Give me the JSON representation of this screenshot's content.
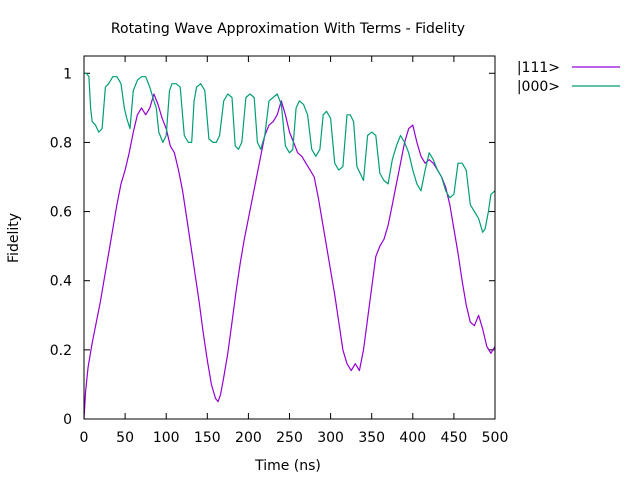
{
  "chart_data": {
    "type": "line",
    "title": "Rotating Wave Approximation With Terms - Fidelity",
    "xlabel": "Time (ns)",
    "ylabel": "Fidelity",
    "xlim": [
      0,
      500
    ],
    "ylim": [
      0,
      1.05
    ],
    "xticks": [
      0,
      50,
      100,
      150,
      200,
      250,
      300,
      350,
      400,
      450,
      500
    ],
    "yticks": [
      0,
      0.2,
      0.4,
      0.6,
      0.8,
      1
    ],
    "ytick_labels": [
      "0",
      "0.2",
      "0.4",
      "0.6",
      "0.8",
      "1"
    ],
    "grid": false,
    "legend_position": "top-right outside",
    "series": [
      {
        "name": "|111>",
        "color": "#9400d3",
        "x": [
          0,
          2,
          5,
          10,
          15,
          20,
          25,
          30,
          35,
          40,
          45,
          50,
          55,
          60,
          65,
          70,
          75,
          80,
          85,
          90,
          95,
          100,
          105,
          110,
          115,
          120,
          125,
          130,
          135,
          140,
          145,
          150,
          155,
          160,
          163,
          166,
          170,
          175,
          180,
          185,
          190,
          195,
          200,
          205,
          210,
          215,
          220,
          225,
          230,
          235,
          240,
          245,
          250,
          255,
          260,
          265,
          270,
          275,
          280,
          285,
          290,
          295,
          300,
          305,
          310,
          315,
          320,
          325,
          330,
          335,
          340,
          345,
          350,
          355,
          360,
          365,
          370,
          375,
          380,
          385,
          390,
          395,
          400,
          405,
          410,
          415,
          420,
          425,
          430,
          435,
          440,
          445,
          450,
          455,
          460,
          465,
          470,
          475,
          480,
          485,
          490,
          495,
          500
        ],
        "y": [
          0.0,
          0.08,
          0.15,
          0.22,
          0.28,
          0.34,
          0.41,
          0.48,
          0.55,
          0.62,
          0.68,
          0.72,
          0.77,
          0.83,
          0.88,
          0.9,
          0.88,
          0.9,
          0.94,
          0.91,
          0.87,
          0.84,
          0.79,
          0.77,
          0.72,
          0.66,
          0.58,
          0.5,
          0.42,
          0.34,
          0.25,
          0.17,
          0.1,
          0.06,
          0.05,
          0.07,
          0.12,
          0.19,
          0.28,
          0.37,
          0.45,
          0.52,
          0.58,
          0.64,
          0.7,
          0.76,
          0.82,
          0.85,
          0.86,
          0.88,
          0.92,
          0.88,
          0.83,
          0.8,
          0.77,
          0.76,
          0.74,
          0.72,
          0.7,
          0.64,
          0.57,
          0.5,
          0.43,
          0.36,
          0.28,
          0.2,
          0.16,
          0.14,
          0.16,
          0.14,
          0.2,
          0.29,
          0.38,
          0.47,
          0.5,
          0.52,
          0.56,
          0.62,
          0.68,
          0.74,
          0.8,
          0.84,
          0.85,
          0.8,
          0.76,
          0.74,
          0.75,
          0.74,
          0.72,
          0.7,
          0.67,
          0.62,
          0.55,
          0.48,
          0.4,
          0.33,
          0.28,
          0.27,
          0.3,
          0.26,
          0.21,
          0.19,
          0.21
        ]
      },
      {
        "name": "|000>",
        "color": "#009e73",
        "x": [
          0,
          3,
          6,
          8,
          10,
          14,
          18,
          22,
          26,
          30,
          35,
          40,
          45,
          49,
          52,
          56,
          60,
          65,
          70,
          75,
          80,
          85,
          88,
          91,
          96,
          100,
          104,
          107,
          112,
          117,
          122,
          127,
          131,
          134,
          137,
          142,
          147,
          152,
          157,
          161,
          165,
          170,
          175,
          180,
          184,
          188,
          192,
          197,
          202,
          207,
          211,
          215,
          220,
          225,
          230,
          235,
          240,
          245,
          250,
          254,
          258,
          262,
          267,
          272,
          277,
          282,
          287,
          291,
          295,
          300,
          305,
          310,
          315,
          320,
          324,
          328,
          332,
          336,
          340,
          345,
          350,
          355,
          360,
          365,
          370,
          375,
          380,
          385,
          390,
          395,
          400,
          405,
          410,
          415,
          420,
          425,
          430,
          435,
          440,
          445,
          450,
          455,
          460,
          465,
          470,
          475,
          480,
          485,
          488,
          492,
          495,
          500
        ],
        "y": [
          1.0,
          1.0,
          0.99,
          0.9,
          0.86,
          0.85,
          0.83,
          0.84,
          0.96,
          0.97,
          0.99,
          0.99,
          0.97,
          0.9,
          0.87,
          0.84,
          0.95,
          0.98,
          0.99,
          0.99,
          0.96,
          0.92,
          0.9,
          0.83,
          0.8,
          0.82,
          0.95,
          0.97,
          0.97,
          0.96,
          0.82,
          0.8,
          0.8,
          0.92,
          0.96,
          0.97,
          0.95,
          0.81,
          0.8,
          0.8,
          0.82,
          0.92,
          0.94,
          0.93,
          0.79,
          0.78,
          0.8,
          0.93,
          0.94,
          0.93,
          0.8,
          0.78,
          0.82,
          0.92,
          0.93,
          0.94,
          0.91,
          0.79,
          0.77,
          0.78,
          0.9,
          0.92,
          0.91,
          0.88,
          0.78,
          0.76,
          0.78,
          0.88,
          0.89,
          0.87,
          0.74,
          0.72,
          0.73,
          0.88,
          0.88,
          0.86,
          0.73,
          0.71,
          0.69,
          0.82,
          0.83,
          0.82,
          0.71,
          0.69,
          0.68,
          0.75,
          0.79,
          0.82,
          0.8,
          0.77,
          0.72,
          0.68,
          0.66,
          0.72,
          0.77,
          0.75,
          0.72,
          0.7,
          0.66,
          0.64,
          0.65,
          0.74,
          0.74,
          0.72,
          0.62,
          0.6,
          0.58,
          0.54,
          0.55,
          0.6,
          0.65,
          0.66
        ]
      }
    ]
  }
}
